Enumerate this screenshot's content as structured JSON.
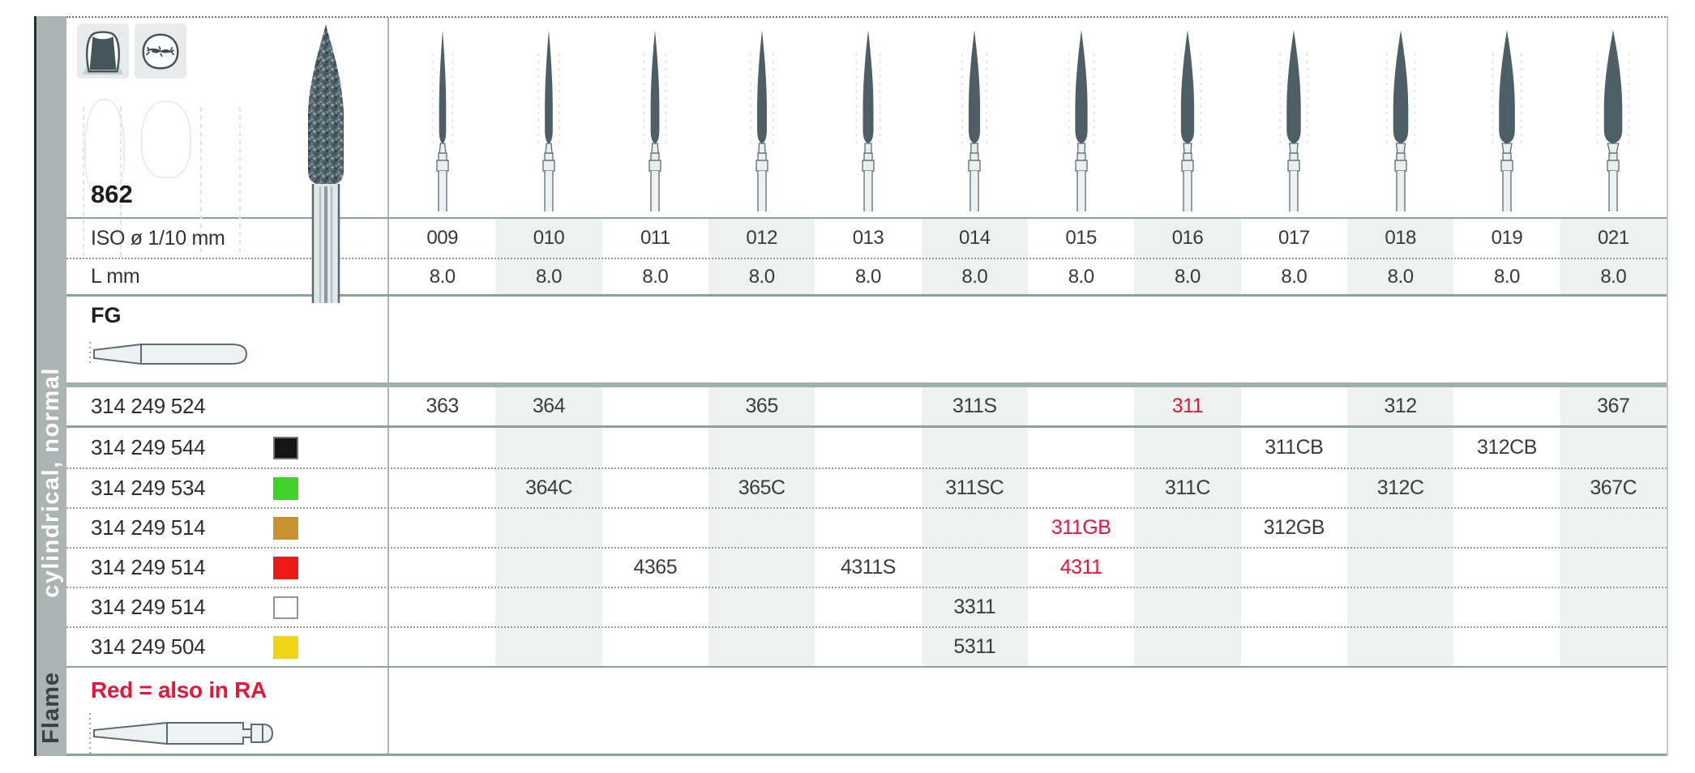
{
  "page": {
    "product_number": "862",
    "iso_row_label": "ISO ø 1/10 mm",
    "length_row_label": "L mm",
    "shank_type_label": "FG",
    "series_side_label": "cylindrical, normal",
    "next_section_side_label": "Flame",
    "legend_note": "Red = also in RA"
  },
  "columns": [
    {
      "iso": "009",
      "l_mm": "8.0"
    },
    {
      "iso": "010",
      "l_mm": "8.0"
    },
    {
      "iso": "011",
      "l_mm": "8.0"
    },
    {
      "iso": "012",
      "l_mm": "8.0"
    },
    {
      "iso": "013",
      "l_mm": "8.0"
    },
    {
      "iso": "014",
      "l_mm": "8.0"
    },
    {
      "iso": "015",
      "l_mm": "8.0"
    },
    {
      "iso": "016",
      "l_mm": "8.0"
    },
    {
      "iso": "017",
      "l_mm": "8.0"
    },
    {
      "iso": "018",
      "l_mm": "8.0"
    },
    {
      "iso": "019",
      "l_mm": "8.0"
    },
    {
      "iso": "021",
      "l_mm": "8.0"
    }
  ],
  "order_rows": [
    {
      "order_no": "314 249 524",
      "chip": null,
      "cells": [
        {
          "v": "363"
        },
        {
          "v": "364"
        },
        null,
        {
          "v": "365"
        },
        null,
        {
          "v": "311S"
        },
        null,
        {
          "v": "311",
          "red": true
        },
        null,
        {
          "v": "312"
        },
        null,
        {
          "v": "367"
        }
      ]
    },
    {
      "order_no": "314 249 544",
      "chip": "black",
      "cells": [
        null,
        null,
        null,
        null,
        null,
        null,
        null,
        null,
        {
          "v": "311CB"
        },
        null,
        {
          "v": "312CB"
        },
        null
      ]
    },
    {
      "order_no": "314 249 534",
      "chip": "green",
      "cells": [
        null,
        {
          "v": "364C"
        },
        null,
        {
          "v": "365C"
        },
        null,
        {
          "v": "311SC"
        },
        null,
        {
          "v": "311C"
        },
        null,
        {
          "v": "312C"
        },
        null,
        {
          "v": "367C"
        }
      ]
    },
    {
      "order_no": "314 249 514",
      "chip": "gold",
      "cells": [
        null,
        null,
        null,
        null,
        null,
        null,
        {
          "v": "311GB",
          "red": true
        },
        null,
        {
          "v": "312GB"
        },
        null,
        null,
        null
      ]
    },
    {
      "order_no": "314 249 514",
      "chip": "red",
      "cells": [
        null,
        null,
        {
          "v": "4365"
        },
        null,
        {
          "v": "4311S"
        },
        null,
        {
          "v": "4311",
          "red": true
        },
        null,
        null,
        null,
        null,
        null
      ]
    },
    {
      "order_no": "314 249 514",
      "chip": "white",
      "cells": [
        null,
        null,
        null,
        null,
        null,
        {
          "v": "3311"
        },
        null,
        null,
        null,
        null,
        null,
        null
      ]
    },
    {
      "order_no": "314 249 504",
      "chip": "yellow",
      "cells": [
        null,
        null,
        null,
        null,
        null,
        {
          "v": "5311"
        },
        null,
        null,
        null,
        null,
        null,
        null
      ]
    }
  ],
  "colors": {
    "accent_red": "#e3173a",
    "stripe": "#edf1f0",
    "sidebar_gray": "#aab4b2",
    "bur_head_dark": "#4e5e66",
    "chips": {
      "black": "#141414",
      "green": "#3fd32a",
      "gold": "#c8922f",
      "red": "#ee1a1a",
      "white": "#ffffff",
      "yellow": "#f2d417"
    }
  },
  "icons": [
    {
      "name": "crown-prep-icon"
    },
    {
      "name": "occlusal-surface-icon"
    },
    {
      "name": "flame-bur-photo"
    },
    {
      "name": "fg-shank-icon"
    },
    {
      "name": "ra-shank-icon"
    }
  ]
}
